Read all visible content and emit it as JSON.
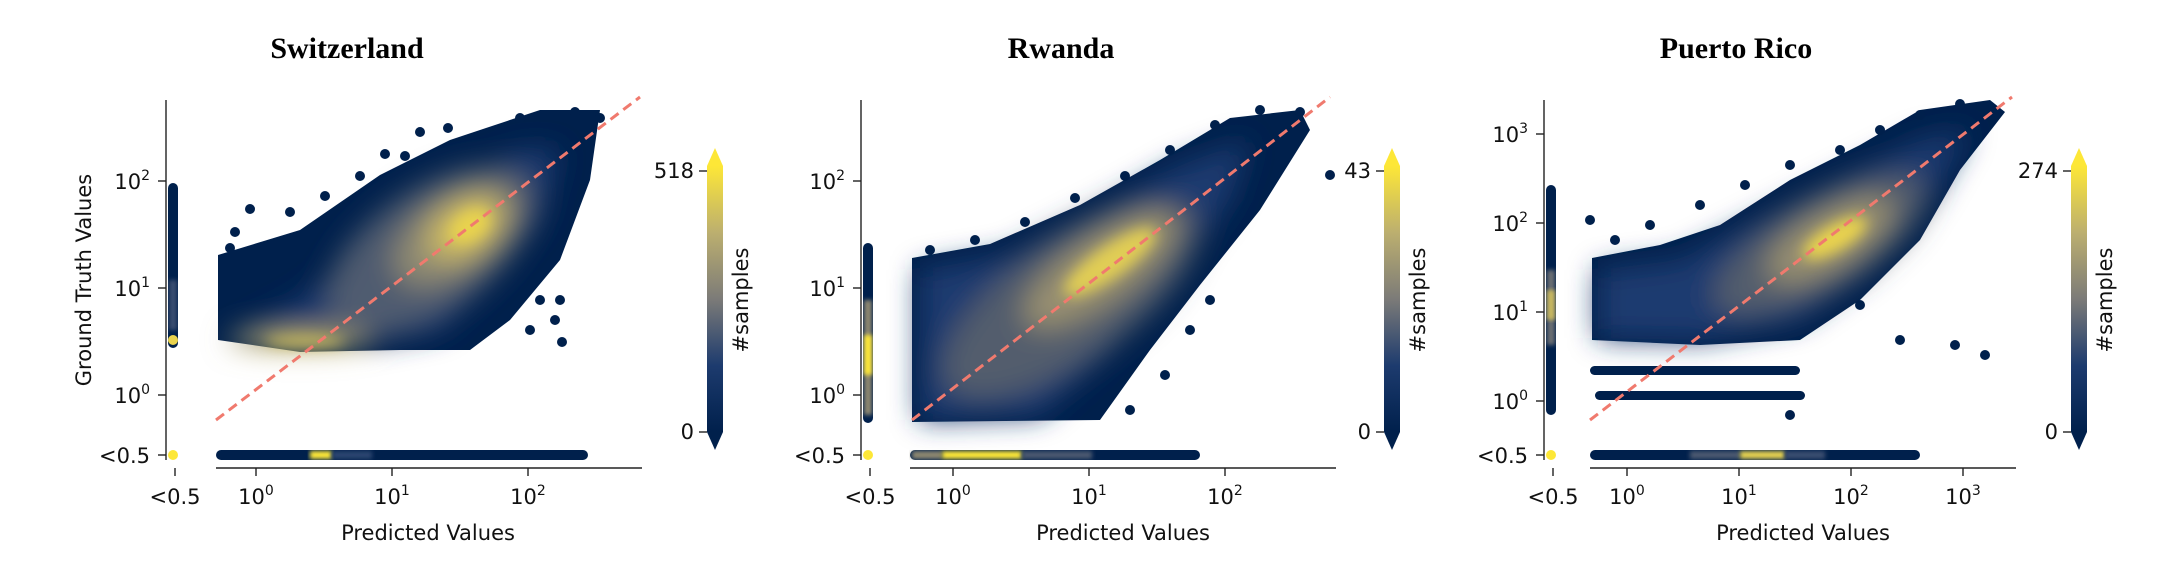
{
  "chart_data": [
    {
      "type": "scatter",
      "subtype": "density hexbin scatter (log-log) with marginal strips",
      "title": "Switzerland",
      "xlabel": "Predicted Values",
      "ylabel": "Ground Truth Values",
      "x_scale": "log",
      "y_scale": "log",
      "xlim": [
        0.5,
        600
      ],
      "ylim": [
        0.5,
        600
      ],
      "x_ticks": [
        "10^0",
        "10^1",
        "10^2"
      ],
      "y_ticks": [
        "10^0",
        "10^1",
        "10^2"
      ],
      "underflow_label": "<0.5",
      "reference_line": "y = x",
      "density_peak": {
        "x": 30,
        "y": 30
      },
      "ridge": {
        "x": 2.5,
        "y": 2.6,
        "note": "dense horizontal band along the minimum ground-truth value"
      },
      "colorbar": {
        "label": "#samples",
        "min": 0,
        "max": 518
      }
    },
    {
      "type": "scatter",
      "subtype": "density hexbin scatter (log-log) with marginal strips",
      "title": "Rwanda",
      "xlabel": "Predicted Values",
      "ylabel": "",
      "x_scale": "log",
      "y_scale": "log",
      "xlim": [
        0.5,
        550
      ],
      "ylim": [
        0.5,
        500
      ],
      "x_ticks": [
        "10^0",
        "10^1",
        "10^2"
      ],
      "y_ticks": [
        "10^0",
        "10^1",
        "10^2"
      ],
      "underflow_label": "<0.5",
      "reference_line": "y = x",
      "density_peak": {
        "x": 15,
        "y": 15
      },
      "colorbar": {
        "label": "#samples",
        "min": 0,
        "max": 43
      }
    },
    {
      "type": "scatter",
      "subtype": "density hexbin scatter (log-log) with marginal strips",
      "title": "Puerto Rico",
      "xlabel": "Predicted Values",
      "ylabel": "",
      "x_scale": "log",
      "y_scale": "log",
      "xlim": [
        0.5,
        3000
      ],
      "ylim": [
        0.5,
        3000
      ],
      "x_ticks": [
        "10^0",
        "10^1",
        "10^2",
        "10^3"
      ],
      "y_ticks": [
        "10^0",
        "10^1",
        "10^2",
        "10^3"
      ],
      "underflow_label": "<0.5",
      "reference_line": "y = x",
      "density_peak": {
        "x": 60,
        "y": 60
      },
      "discrete_rows_y": [
        2,
        1
      ],
      "colorbar": {
        "label": "#samples",
        "min": 0,
        "max": 274
      }
    }
  ],
  "colors": {
    "cmap_low": "#00204c",
    "cmap_mid": "#7c7b78",
    "cmap_high": "#fde737",
    "point_edge": "#00204c",
    "identity_line": "#f07a6e"
  }
}
